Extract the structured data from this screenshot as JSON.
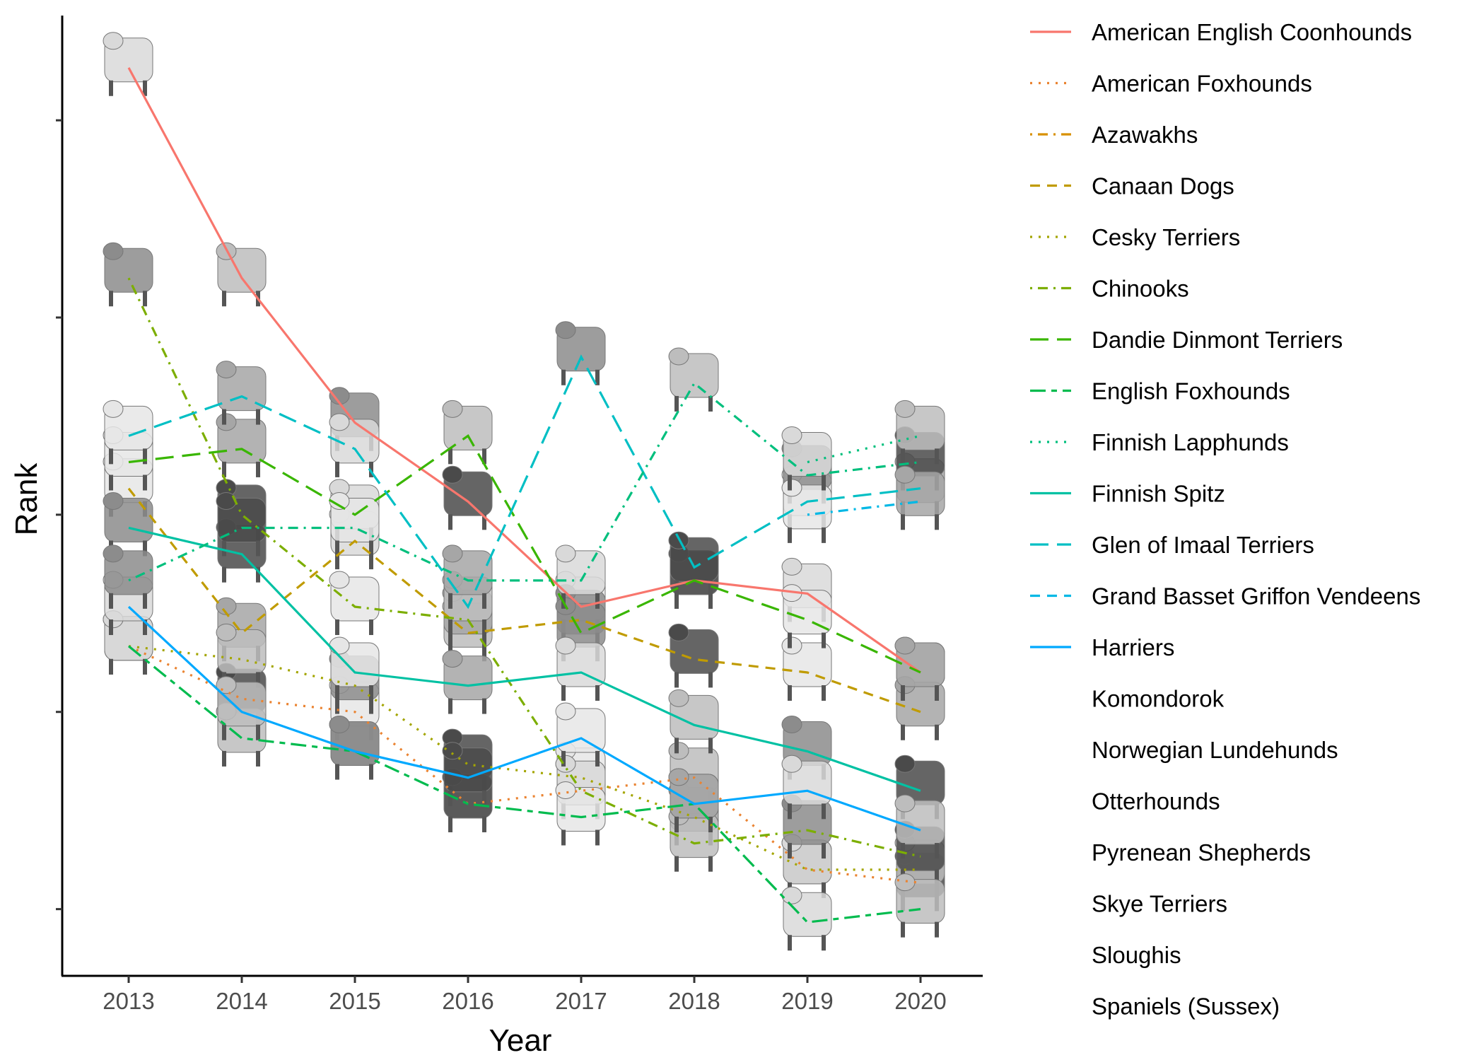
{
  "chart_data": {
    "type": "line",
    "title": "",
    "xlabel": "Year",
    "ylabel": "Rank",
    "x": [
      2013,
      2014,
      2015,
      2016,
      2017,
      2018,
      2019,
      2020
    ],
    "ylim": [
      103,
      174
    ],
    "y_reversed": true,
    "y_tick_labels_shown": false,
    "y_ticks": [
      110,
      125,
      140,
      155,
      170
    ],
    "grid": false,
    "legend_position": "right",
    "series": [
      {
        "name": "American English Coonhounds",
        "color": "#F8766D",
        "dash": "solid",
        "values": [
          106,
          122,
          133,
          139,
          147,
          145,
          146,
          152
        ]
      },
      {
        "name": "American Foxhounds",
        "color": "#EA8331",
        "dash": "dotted",
        "values": [
          150,
          154,
          155,
          162,
          161,
          160,
          167,
          168
        ]
      },
      {
        "name": "Azawakhs",
        "color": "#D89000",
        "dash": "dotdash",
        "values": null
      },
      {
        "name": "Canaan Dogs",
        "color": "#C09B00",
        "dash": "dashed",
        "values": [
          138,
          149,
          142,
          149,
          148,
          151,
          152,
          155
        ]
      },
      {
        "name": "Cesky Terriers",
        "color": "#A3A500",
        "dash": "dotted",
        "values": [
          150,
          151,
          153,
          159,
          160,
          163,
          167,
          167
        ]
      },
      {
        "name": "Chinooks",
        "color": "#7CAE00",
        "dash": "dotdash",
        "values": [
          122,
          140,
          147,
          148,
          161,
          165,
          164,
          166
        ]
      },
      {
        "name": "Dandie Dinmont Terriers",
        "color": "#39B600",
        "dash": "longdash",
        "values": [
          136,
          135,
          140,
          134,
          149,
          145,
          148,
          152
        ]
      },
      {
        "name": "English Foxhounds",
        "color": "#00BB4E",
        "dash": "twodash",
        "values": [
          150,
          157,
          158,
          162,
          163,
          162,
          171,
          170
        ]
      },
      {
        "name": "Finnish Lapphunds",
        "color": "#00BF7D",
        "dash": "dotted",
        "values": null
      },
      {
        "name": "Finnish Spitz",
        "color": "#00C1A3",
        "dash": "solid",
        "values": [
          141,
          143,
          152,
          153,
          152,
          156,
          158,
          161
        ]
      },
      {
        "name": "Glen of Imaal Terriers",
        "color": "#00BFC4",
        "dash": "longdash",
        "values": [
          134,
          131,
          135,
          147,
          128,
          144,
          139,
          138
        ]
      },
      {
        "name": "Grand Basset Griffon Vendeens",
        "color": "#00B8E5",
        "dash": "dashed",
        "values": null
      },
      {
        "name": "Harriers",
        "color": "#00A9FF",
        "dash": "solid",
        "values": [
          147,
          155,
          158,
          160,
          157,
          162,
          161,
          164
        ]
      },
      {
        "name": "Komondorok",
        "color": "#8796FF",
        "dash": "solid",
        "values": null
      },
      {
        "name": "Norwegian Lundehunds",
        "color": "#C77CFF",
        "dash": "solid",
        "values": null
      },
      {
        "name": "Otterhounds",
        "color": "#E76BF3",
        "dash": "solid",
        "values": null
      },
      {
        "name": "Pyrenean Shepherds",
        "color": "#FA62DB",
        "dash": "solid",
        "values": null
      },
      {
        "name": "Skye Terriers",
        "color": "#FF62BC",
        "dash": "solid",
        "values": null
      },
      {
        "name": "Sloughis",
        "color": "#FF6C91",
        "dash": "solid",
        "values": null
      },
      {
        "name": "Spaniels (Sussex)",
        "color": "#FF6C91",
        "dash": "solid",
        "values": null
      }
    ],
    "extra_lines": [
      {
        "color": "#00BF7D",
        "dash": "dotdash",
        "values": [
          145,
          141,
          141,
          145,
          145,
          130,
          137,
          136
        ]
      },
      {
        "color": "#00B8E5",
        "dash": "dotdash",
        "values": [
          null,
          null,
          null,
          null,
          null,
          null,
          140,
          139
        ]
      },
      {
        "color": "#00BF7D",
        "dash": "dotted",
        "values": [
          null,
          null,
          null,
          null,
          null,
          null,
          136,
          134
        ]
      }
    ]
  }
}
